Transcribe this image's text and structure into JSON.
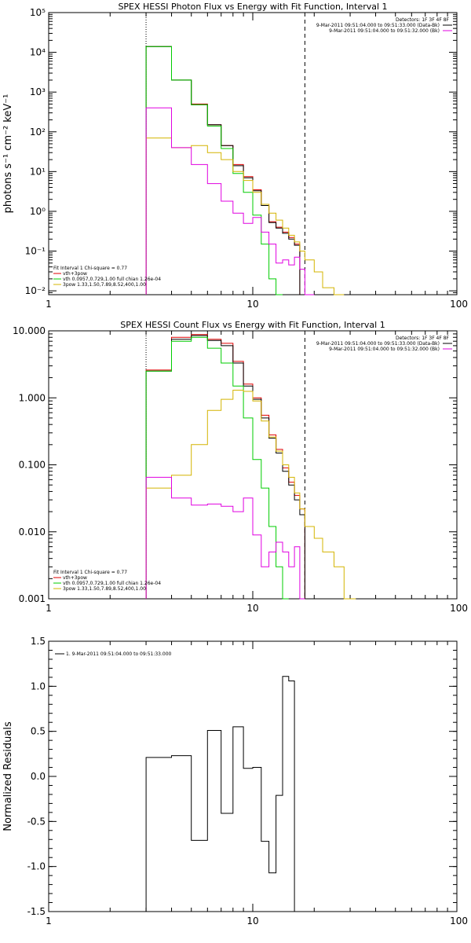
{
  "chart_data": [
    {
      "type": "line",
      "panel": "photon",
      "title": "SPEX HESSI Photon Flux vs Energy with Fit Function, Interval 1",
      "ylabel": "photons s⁻¹ cm⁻² keV⁻¹",
      "xscale": "log",
      "yscale": "log",
      "xlim": [
        1,
        100
      ],
      "ylim": [
        0.008,
        100000
      ],
      "xticks": [
        {
          "v": 1,
          "label": "1"
        },
        {
          "v": 10,
          "label": "10"
        },
        {
          "v": 100,
          "label": "100"
        }
      ],
      "yticks": [
        {
          "v": 0.01,
          "label": "10⁻²"
        },
        {
          "v": 0.1,
          "label": "10⁻¹"
        },
        {
          "v": 1,
          "label": "10⁰"
        },
        {
          "v": 10,
          "label": "10¹"
        },
        {
          "v": 100,
          "label": "10²"
        },
        {
          "v": 1000,
          "label": "10³"
        },
        {
          "v": 10000,
          "label": "10⁴"
        },
        {
          "v": 100000,
          "label": "10⁵"
        }
      ],
      "vlines": [
        {
          "x": 3,
          "style": "dotted"
        },
        {
          "x": 18,
          "style": "dashed"
        }
      ],
      "annotations": {
        "detectors": "Detectors: 1F 3F 4F 8F",
        "legend_right": [
          {
            "text": "9-Mar-2011 09:51:04.000 to 09:51:33.000 (Data-Bk)",
            "color": "#000000"
          },
          {
            "text": "9-Mar-2011 09:51:04.000 to 09:51:32.000 (Bk)",
            "color": "#e000e0"
          }
        ],
        "fit_legend": [
          {
            "text": "Fit Interval 1   Chi-square = 0.77",
            "color": "#000000"
          },
          {
            "text": "vth+3pow",
            "color": "#e00000"
          },
          {
            "text": "vth 0.0957,0.729,1.00   full chian 1.26e-04",
            "color": "#00cc00"
          },
          {
            "text": "3pow 1.33,1.50,7.89,8.52,400,1.00",
            "color": "#d4b400"
          }
        ]
      },
      "edges": [
        3,
        4,
        5,
        6,
        7,
        8,
        9,
        10,
        11,
        12,
        13,
        14,
        15,
        16,
        17,
        18,
        20,
        22,
        25,
        28,
        32
      ],
      "series": [
        {
          "name": "vth+3pow",
          "color": "#e00000",
          "values": [
            14000,
            2000,
            500,
            150,
            45,
            15,
            7.5,
            3.5,
            1.5,
            0.55,
            0.4,
            0.3,
            0.22,
            0.15,
            null,
            null,
            null,
            null,
            null,
            null
          ]
        },
        {
          "name": "Data-Bk",
          "color": "#000000",
          "values": [
            14000,
            2000,
            480,
            150,
            45,
            14,
            7,
            3.3,
            1.4,
            0.52,
            0.38,
            0.28,
            0.2,
            0.14,
            null,
            null,
            null,
            null,
            null,
            null
          ]
        },
        {
          "name": "vth",
          "color": "#00cc00",
          "values": [
            14000,
            2000,
            480,
            140,
            38,
            9,
            3,
            0.8,
            0.15,
            0.02,
            0.005,
            null,
            null,
            null,
            null,
            null,
            null,
            null,
            null,
            null
          ]
        },
        {
          "name": "3pow",
          "color": "#d4b400",
          "values": [
            70,
            40,
            45,
            30,
            20,
            10,
            6,
            3,
            1.5,
            0.9,
            0.6,
            0.38,
            0.25,
            0.17,
            0.1,
            0.06,
            0.03,
            0.012,
            0.005,
            null
          ]
        },
        {
          "name": "Bk",
          "color": "#e000e0",
          "values": [
            400,
            40,
            15,
            5,
            1.8,
            0.9,
            0.5,
            0.7,
            0.3,
            0.15,
            0.05,
            0.06,
            0.045,
            0.07,
            0.035,
            0.005,
            null,
            null,
            null,
            null
          ]
        }
      ]
    },
    {
      "type": "line",
      "panel": "count",
      "title": "SPEX HESSI Count Flux vs Energy with Fit Function, Interval 1",
      "xscale": "log",
      "yscale": "log",
      "xlim": [
        1,
        100
      ],
      "ylim": [
        0.001,
        10
      ],
      "xticks": [
        {
          "v": 1,
          "label": "1"
        },
        {
          "v": 10,
          "label": "10"
        },
        {
          "v": 100,
          "label": "100"
        }
      ],
      "yticks": [
        {
          "v": 0.001,
          "label": "0.001"
        },
        {
          "v": 0.01,
          "label": "0.010"
        },
        {
          "v": 0.1,
          "label": "0.100"
        },
        {
          "v": 1,
          "label": "1.000"
        },
        {
          "v": 10,
          "label": "10.000"
        }
      ],
      "vlines": [
        {
          "x": 3,
          "style": "dotted"
        },
        {
          "x": 18,
          "style": "dashed"
        }
      ],
      "annotations": {
        "detectors": "Detectors: 1F 3F 4F 8F",
        "legend_right": [
          {
            "text": "9-Mar-2011 09:51:04.000 to 09:51:33.000 (Data-Bk)",
            "color": "#000000"
          },
          {
            "text": "9-Mar-2011 09:51:04.000 to 09:51:32.000 (Bk)",
            "color": "#e000e0"
          }
        ],
        "fit_legend": [
          {
            "text": "Fit Interval 1   Chi-square = 0.77",
            "color": "#000000"
          },
          {
            "text": "vth+3pow",
            "color": "#e00000"
          },
          {
            "text": "vth 0.0957,0.729,1.00   full chian 1.26e-04",
            "color": "#00cc00"
          },
          {
            "text": "3pow 1.33,1.50,7.89,8.52,400,1.00",
            "color": "#d4b400"
          }
        ]
      },
      "edges": [
        3,
        4,
        5,
        6,
        7,
        8,
        9,
        10,
        11,
        12,
        13,
        14,
        15,
        16,
        17,
        18,
        20,
        22,
        25,
        28,
        32
      ],
      "series": [
        {
          "name": "vth+3pow",
          "color": "#e00000",
          "values": [
            2.6,
            8,
            8.8,
            7.5,
            6.5,
            3.5,
            1.6,
            1.0,
            0.55,
            0.28,
            0.17,
            0.09,
            0.055,
            0.035,
            0.022,
            null,
            null,
            null,
            null,
            null
          ]
        },
        {
          "name": "Data-Bk",
          "color": "#000000",
          "values": [
            2.5,
            7.5,
            8.5,
            7.2,
            6,
            3.3,
            1.5,
            0.95,
            0.5,
            0.25,
            0.15,
            0.08,
            0.05,
            0.03,
            0.018,
            null,
            null,
            null,
            null,
            null
          ]
        },
        {
          "name": "vth",
          "color": "#00cc00",
          "values": [
            2.5,
            7,
            8,
            5.5,
            3.3,
            1.5,
            0.5,
            0.12,
            0.045,
            0.012,
            0.003,
            0.001,
            null,
            null,
            null,
            null,
            null,
            null,
            null,
            null
          ]
        },
        {
          "name": "3pow",
          "color": "#d4b400",
          "values": [
            0.045,
            0.07,
            0.2,
            0.65,
            0.95,
            1.3,
            1.25,
            0.9,
            0.45,
            0.26,
            0.16,
            0.1,
            0.065,
            0.038,
            0.022,
            0.012,
            0.008,
            0.005,
            0.003,
            0.001
          ]
        },
        {
          "name": "Bk",
          "color": "#e000e0",
          "values": [
            0.065,
            0.032,
            0.025,
            0.026,
            0.024,
            0.02,
            0.032,
            0.009,
            0.003,
            0.005,
            0.007,
            0.005,
            0.003,
            0.006,
            0.001,
            null,
            null,
            null,
            null,
            null
          ]
        }
      ]
    },
    {
      "type": "line",
      "panel": "residuals",
      "title": "",
      "ylabel": "Normalized Residuals",
      "xscale": "log",
      "yscale": "linear",
      "xlim": [
        1,
        100
      ],
      "ylim": [
        -1.5,
        1.5
      ],
      "xticks": [
        {
          "v": 1,
          "label": "1"
        },
        {
          "v": 10,
          "label": "10"
        },
        {
          "v": 100,
          "label": "100"
        }
      ],
      "yticks": [
        {
          "v": 1.5,
          "label": "1.5"
        },
        {
          "v": 1.0,
          "label": "1.0"
        },
        {
          "v": 0.5,
          "label": "0.5"
        },
        {
          "v": 0.0,
          "label": "0.0"
        },
        {
          "v": -0.5,
          "label": "-0.5"
        },
        {
          "v": -1.0,
          "label": "-1.0"
        },
        {
          "v": -1.5,
          "label": "-1.5"
        }
      ],
      "annotations": {
        "legend_left": [
          {
            "text": "1.  9-Mar-2011 09:51:04.000 to 09:51:33.000",
            "color": "#000000"
          }
        ]
      },
      "edges": [
        3,
        4,
        5,
        6,
        7,
        8,
        9,
        10,
        11,
        12,
        13,
        14,
        15,
        16,
        17,
        18
      ],
      "series": [
        {
          "name": "1.  9-Mar-2011 09:51:04.000 to 09:51:33.000",
          "color": "#000000",
          "values": [
            0.21,
            0.23,
            -0.71,
            0.51,
            -0.41,
            0.55,
            0.09,
            0.1,
            -0.72,
            -1.07,
            -0.21,
            1.11,
            1.06,
            null,
            null
          ]
        }
      ]
    }
  ]
}
